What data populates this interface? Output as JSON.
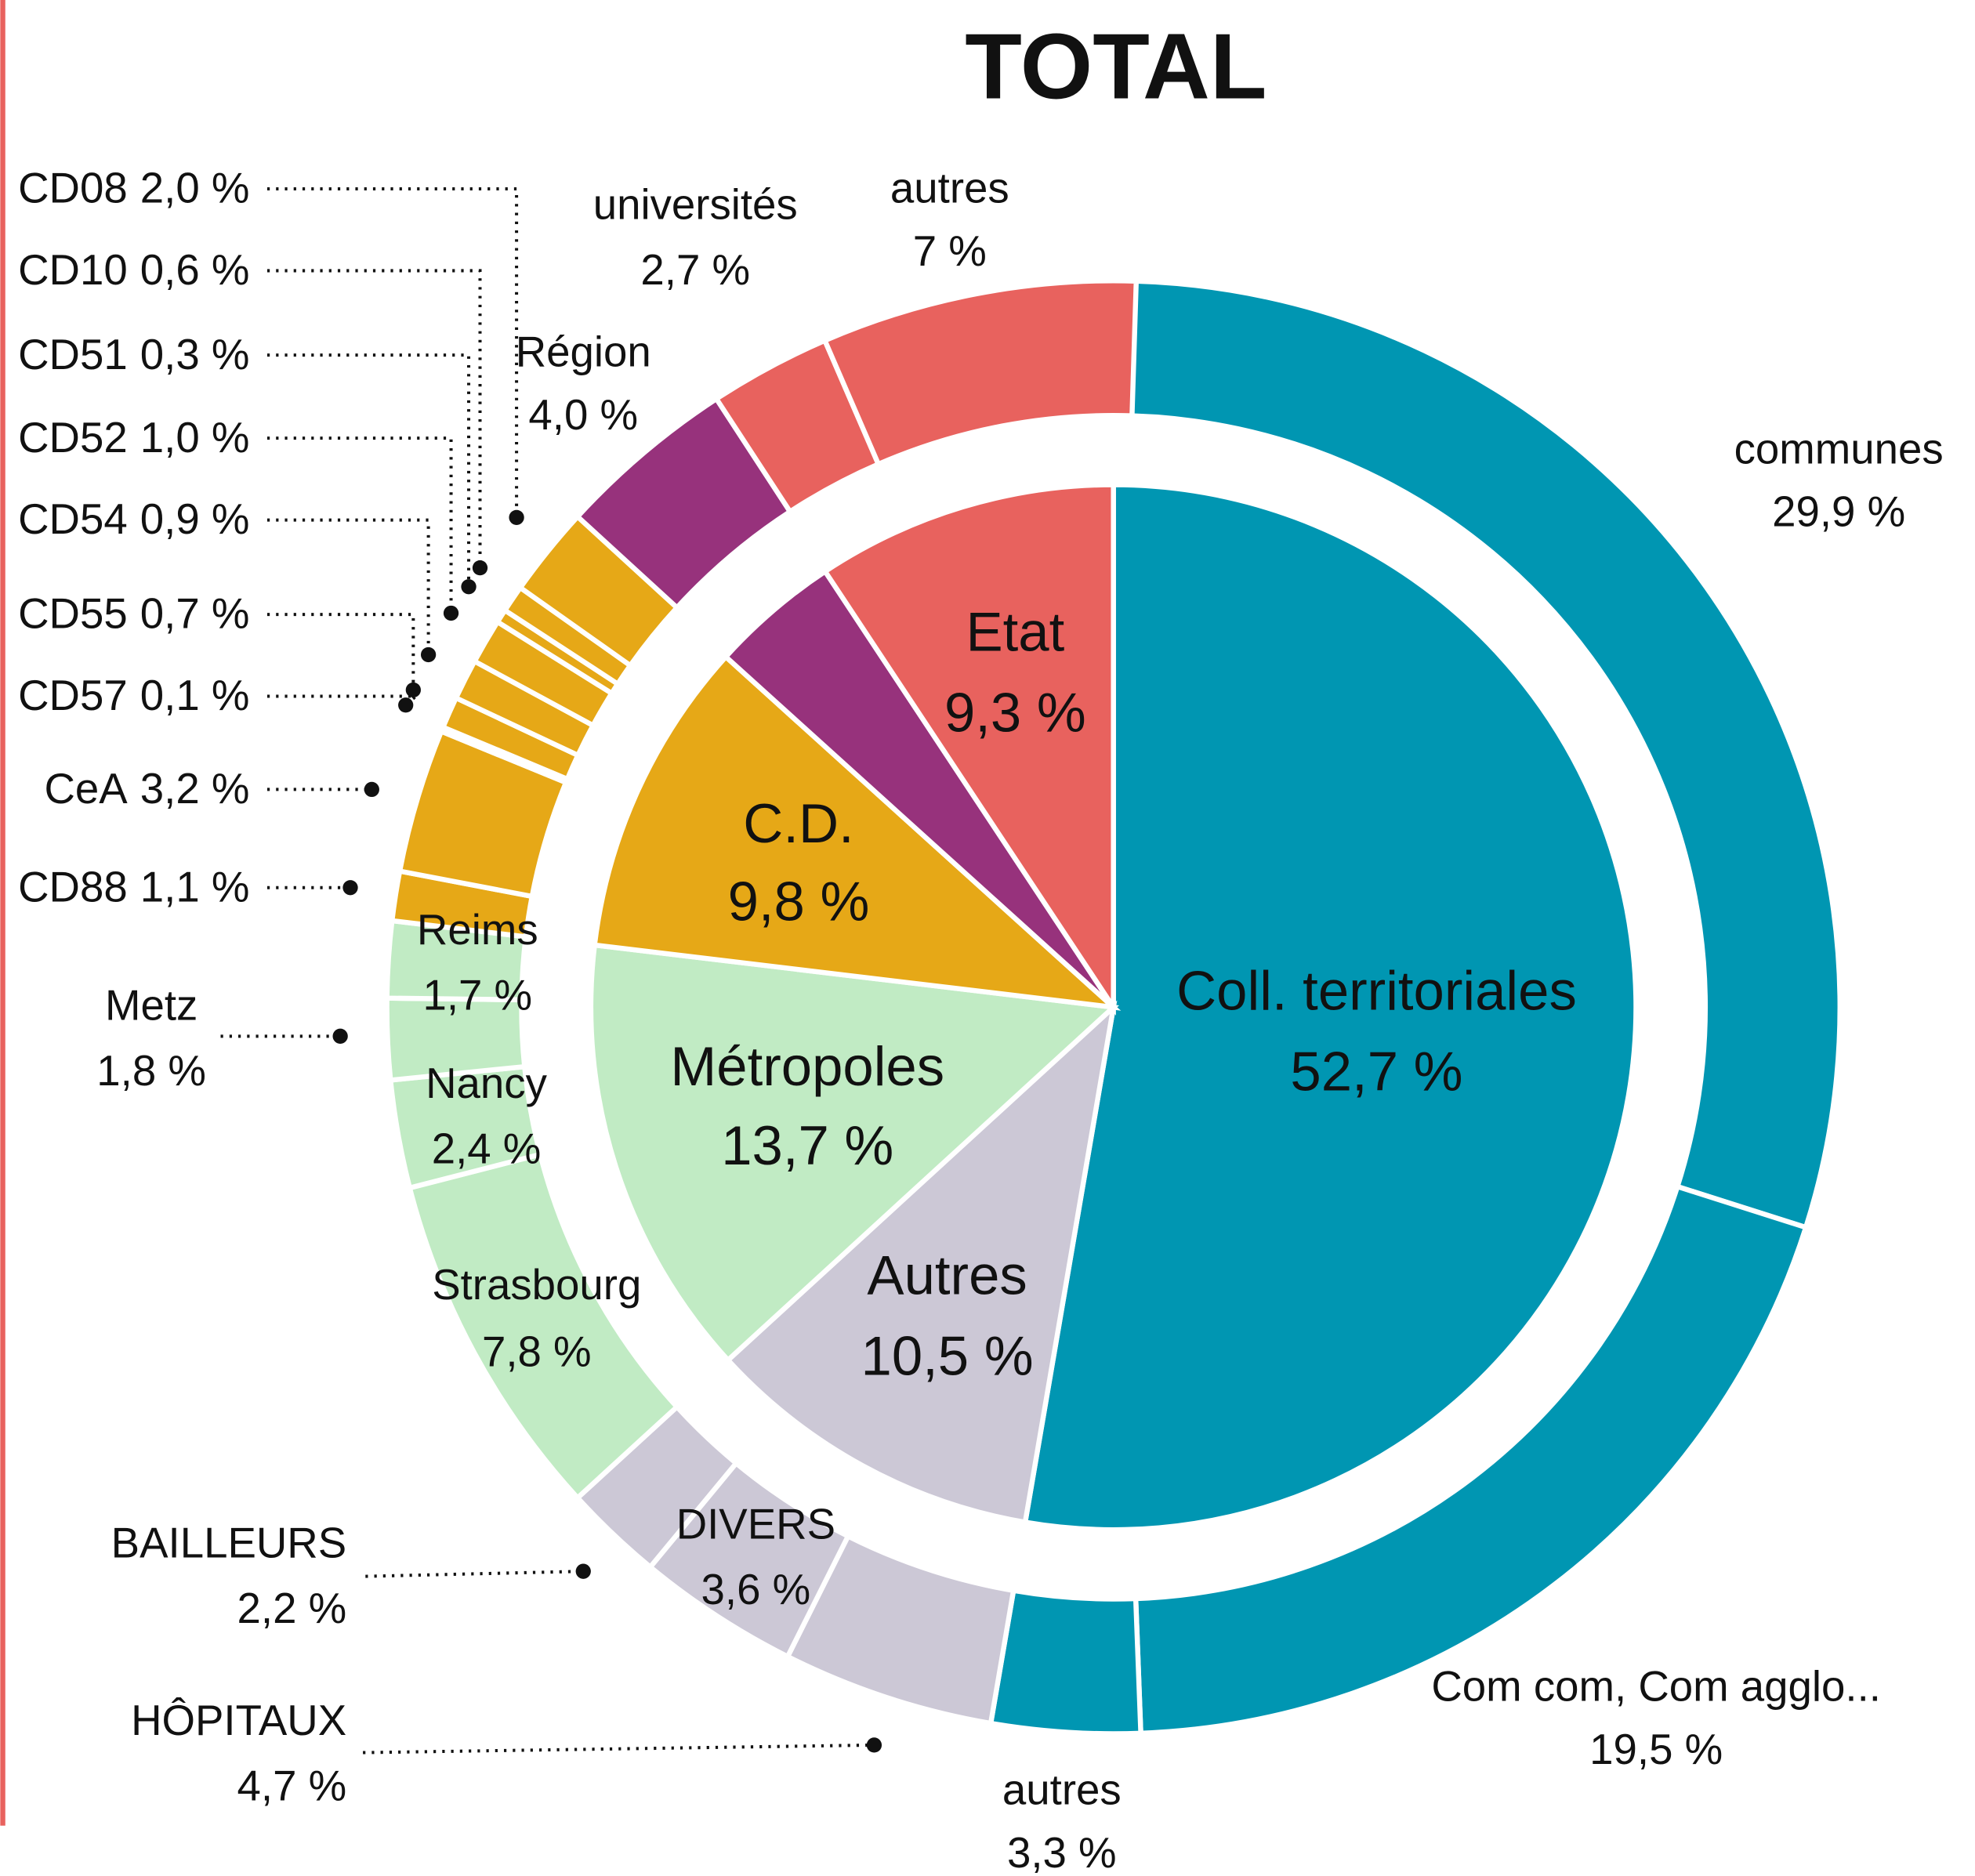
{
  "chart_data": {
    "type": "sunburst",
    "title": "TOTAL",
    "inner": {
      "categories": [
        "Coll. territoriales",
        "Autres",
        "Métropoles",
        "C.D.",
        null,
        "Etat"
      ],
      "values": [
        52.7,
        10.5,
        13.7,
        9.8,
        4.0,
        9.3
      ],
      "value_labels": [
        "52,7 %",
        "10,5 %",
        "13,7 %",
        "9,8 %",
        null,
        "9,3 %"
      ],
      "colors": [
        "#0096b2",
        "#ccc8d6",
        "#c1ebc4",
        "#e6a817",
        "#97327c",
        "#e8625e"
      ]
    },
    "outer": {
      "categories": [
        "communes",
        "Com com, Com agglo...",
        "autres",
        "HÔPITAUX",
        "DIVERS",
        "BAILLEURS",
        "Strasbourg",
        "Nancy",
        "Metz",
        "Reims",
        "CD88",
        "CeA",
        "CD57",
        "CD55",
        "CD54",
        "CD52",
        "CD51",
        "CD10",
        "CD08",
        "Région",
        "universités",
        "autres"
      ],
      "values": [
        29.9,
        19.5,
        3.3,
        4.7,
        3.6,
        2.2,
        7.8,
        2.4,
        1.8,
        1.7,
        1.1,
        3.2,
        0.1,
        0.7,
        0.9,
        1.0,
        0.3,
        0.6,
        2.0,
        4.0,
        2.7,
        7
      ],
      "value_labels": [
        "29,9 %",
        "19,5 %",
        "3,3 %",
        "4,7 %",
        "3,6 %",
        "2,2 %",
        "7,8 %",
        "2,4 %",
        "1,8 %",
        "1,7 %",
        "1,1 %",
        "3,2 %",
        "0,1 %",
        "0,7 %",
        "0,9 %",
        "1,0 %",
        "0,3 %",
        "0,6 %",
        "2,0 %",
        "4,0 %",
        "2,7 %",
        "7 %"
      ],
      "colors": [
        "#0096b2",
        "#0096b2",
        "#0096b2",
        "#ccc8d6",
        "#ccc8d6",
        "#ccc8d6",
        "#c1ebc4",
        "#c1ebc4",
        "#c1ebc4",
        "#c1ebc4",
        "#e6a817",
        "#e6a817",
        "#e6a817",
        "#e6a817",
        "#e6a817",
        "#e6a817",
        "#e6a817",
        "#e6a817",
        "#e6a817",
        "#97327c",
        "#e8625e",
        "#e8625e"
      ]
    }
  }
}
